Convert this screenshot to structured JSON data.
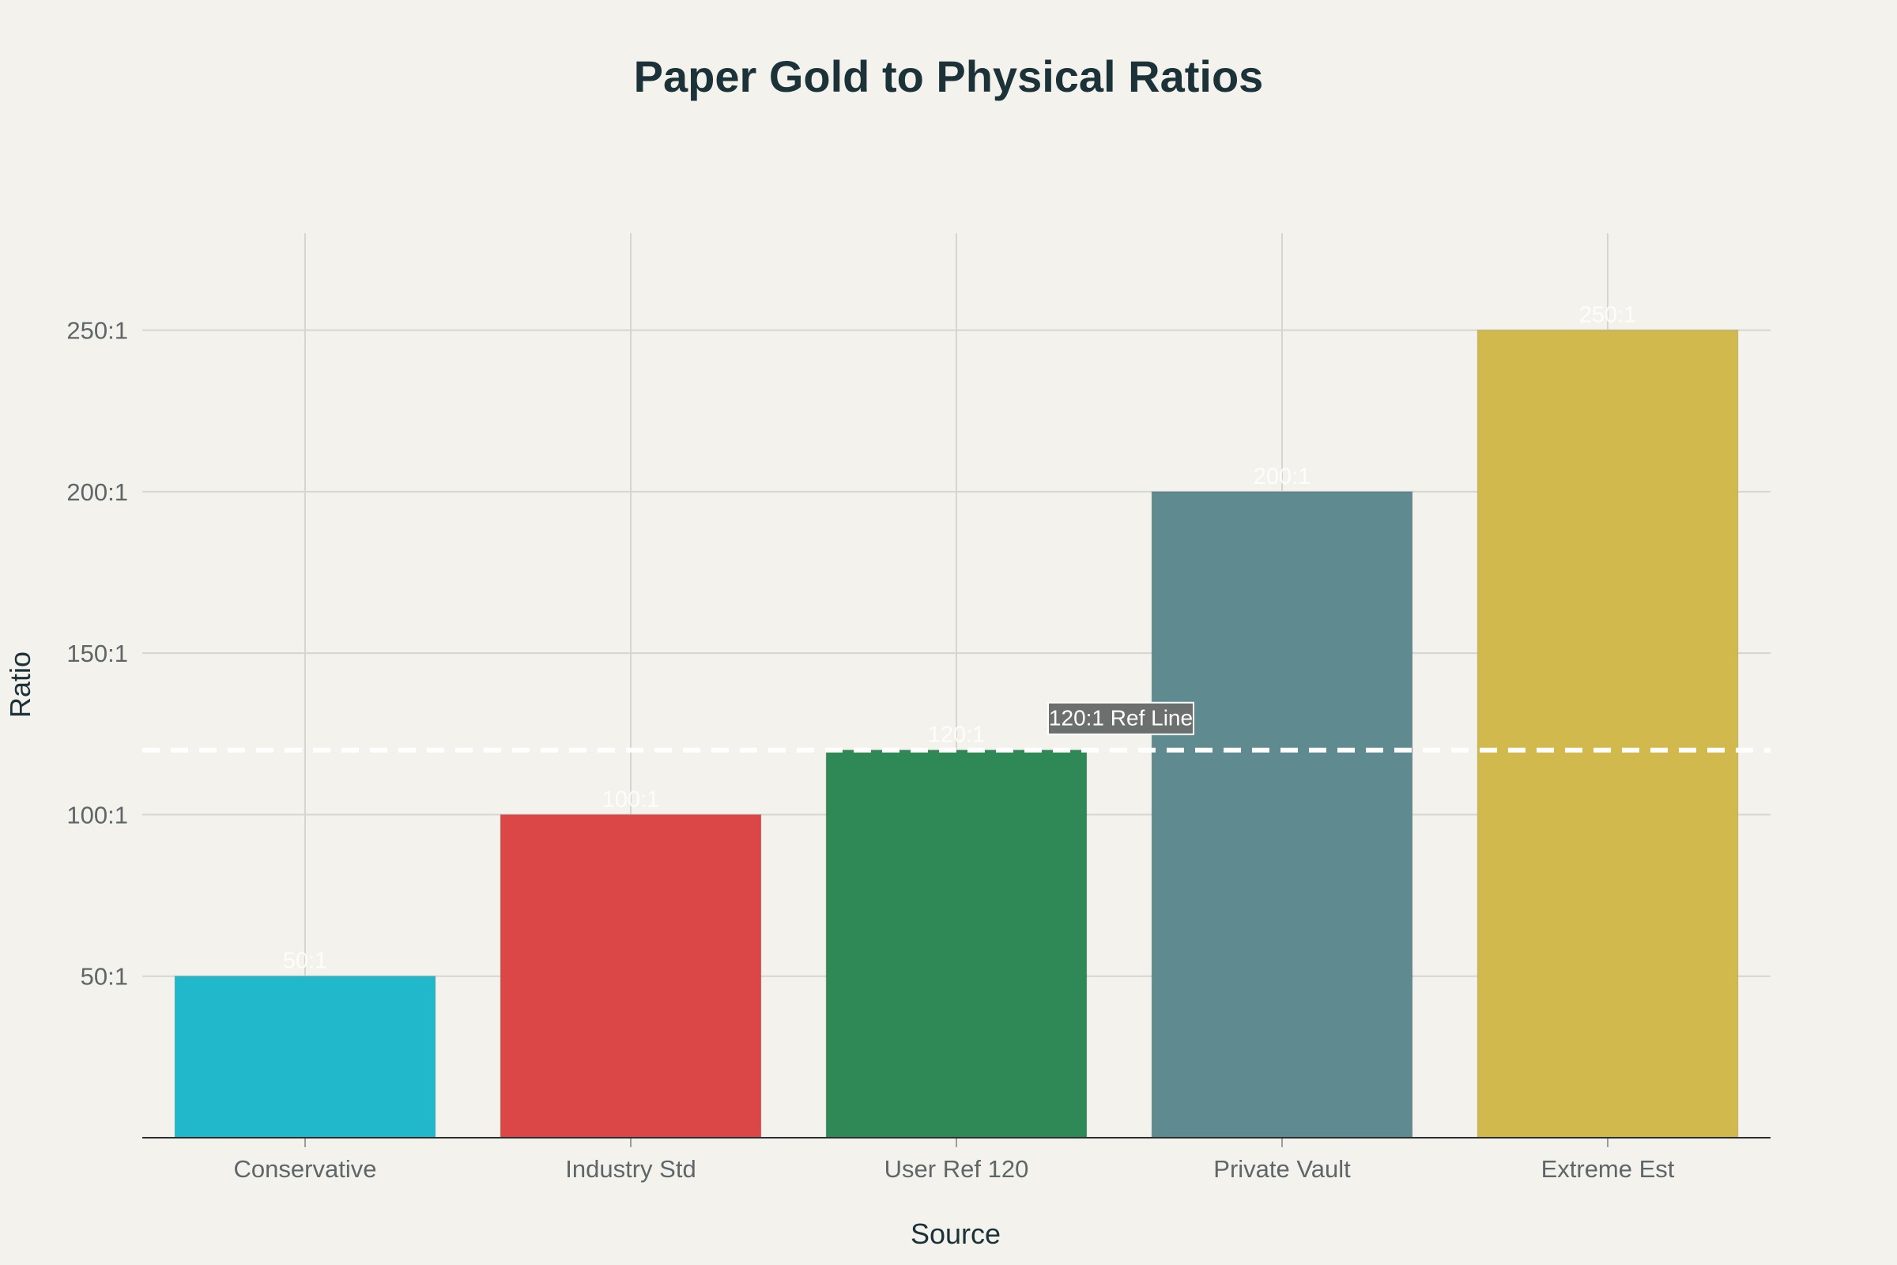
{
  "chart_data": {
    "type": "bar",
    "title": "Paper Gold to Physical Ratios",
    "xlabel": "Source",
    "ylabel": "Ratio",
    "categories": [
      "Conservative",
      "Industry Std",
      "User Ref 120",
      "Private Vault",
      "Extreme Est"
    ],
    "values": [
      50,
      100,
      120,
      200,
      250
    ],
    "data_labels": [
      "50:1",
      "100:1",
      "120:1",
      "200:1",
      "250:1"
    ],
    "colors": [
      "#21b8cc",
      "#db4646",
      "#2e8956",
      "#5e8a90",
      "#d2b94d"
    ],
    "ylim": [
      0,
      280
    ],
    "yticks": [
      50,
      100,
      150,
      200,
      250
    ],
    "ytick_labels": [
      "50:1",
      "100:1",
      "150:1",
      "200:1",
      "250:1"
    ],
    "grid": true,
    "reference_line": {
      "value": 120,
      "label": "120:1 Ref Line",
      "style": "dashed",
      "color": "#ffffff"
    },
    "background": "#f3f2ec",
    "title_color": "#1b3238"
  }
}
